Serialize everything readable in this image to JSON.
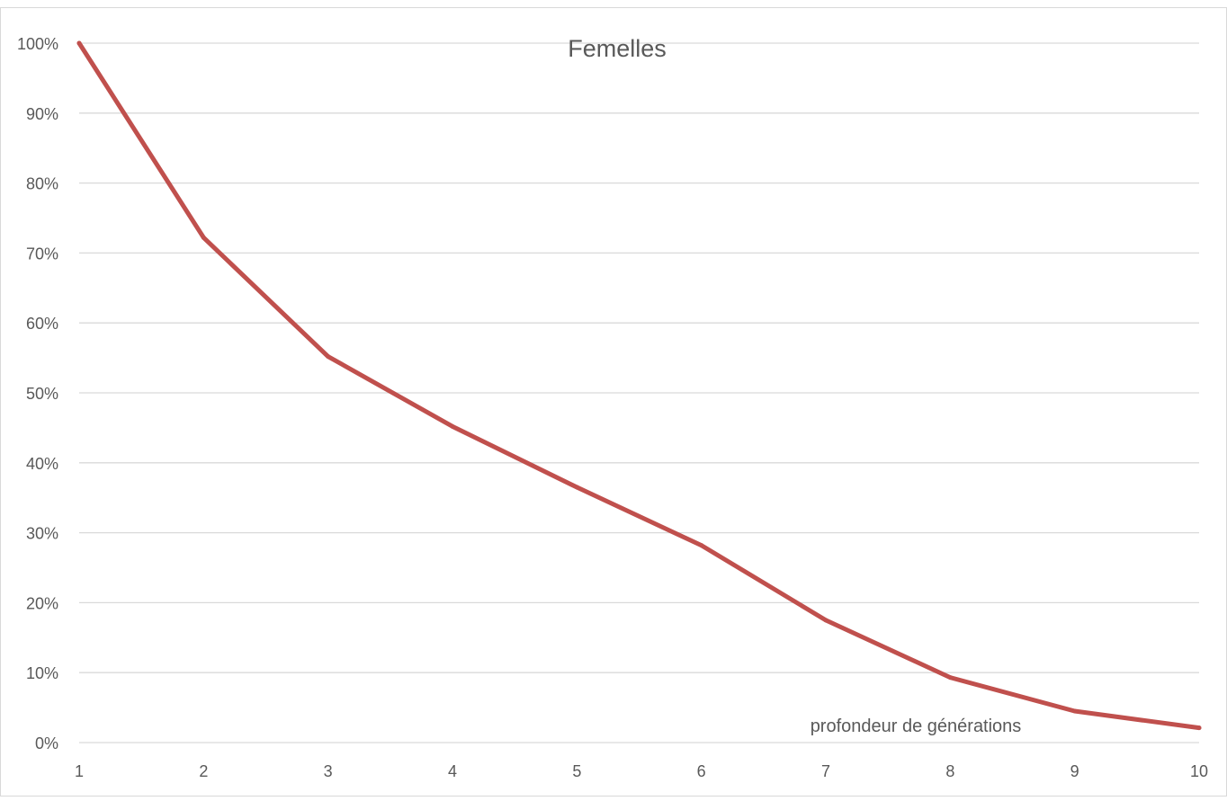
{
  "chart_data": {
    "type": "line",
    "title": "Femelles",
    "xlabel": "profondeur de générations",
    "ylabel": "",
    "categories": [
      "1",
      "2",
      "3",
      "4",
      "5",
      "6",
      "7",
      "8",
      "9",
      "10"
    ],
    "x": [
      1,
      2,
      3,
      4,
      5,
      6,
      7,
      8,
      9,
      10
    ],
    "series": [
      {
        "values": [
          100,
          72.2,
          55.2,
          45.2,
          36.5,
          28.2,
          17.5,
          9.3,
          4.5,
          2.1
        ],
        "color": "#c0504d"
      }
    ],
    "ylim": [
      0,
      100
    ],
    "y_unit": "%",
    "y_ticks": [
      "0%",
      "10%",
      "20%",
      "30%",
      "40%",
      "50%",
      "60%",
      "70%",
      "80%",
      "90%",
      "100%"
    ],
    "grid": true,
    "legend": "none"
  },
  "colors": {
    "line": "#c0504d",
    "grid": "#d9d9d9",
    "text": "#595959",
    "frame": "#d9d9d9"
  }
}
